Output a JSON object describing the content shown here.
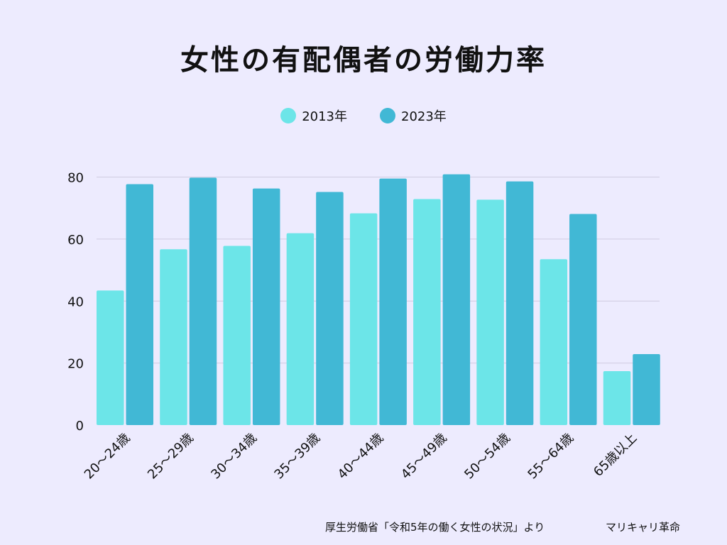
{
  "chart_data": {
    "type": "bar",
    "title": "女性の有配偶者の労働力率",
    "categories": [
      "20〜24歳",
      "25〜29歳",
      "30〜34歳",
      "35〜39歳",
      "40〜44歳",
      "45〜49歳",
      "50〜54歳",
      "55〜64歳",
      "65歳以上"
    ],
    "series": [
      {
        "name": "2013年",
        "color": "#6ce5e8",
        "values": [
          43.4,
          56.7,
          57.8,
          61.9,
          68.3,
          72.9,
          72.7,
          53.5,
          17.4
        ]
      },
      {
        "name": "2023年",
        "color": "#41b8d5",
        "values": [
          77.7,
          79.8,
          76.3,
          75.2,
          79.5,
          80.9,
          78.6,
          68.1,
          22.9
        ]
      }
    ],
    "xlabel": "",
    "ylabel": "",
    "ylim": [
      0,
      80
    ],
    "yticks": [
      0,
      20,
      40,
      60,
      80
    ],
    "grid": true,
    "legend_position": "top-center"
  },
  "footer": {
    "source": "厚生労働省「令和5年の働く女性の状況」より",
    "brand": "マリキャリ革命"
  }
}
